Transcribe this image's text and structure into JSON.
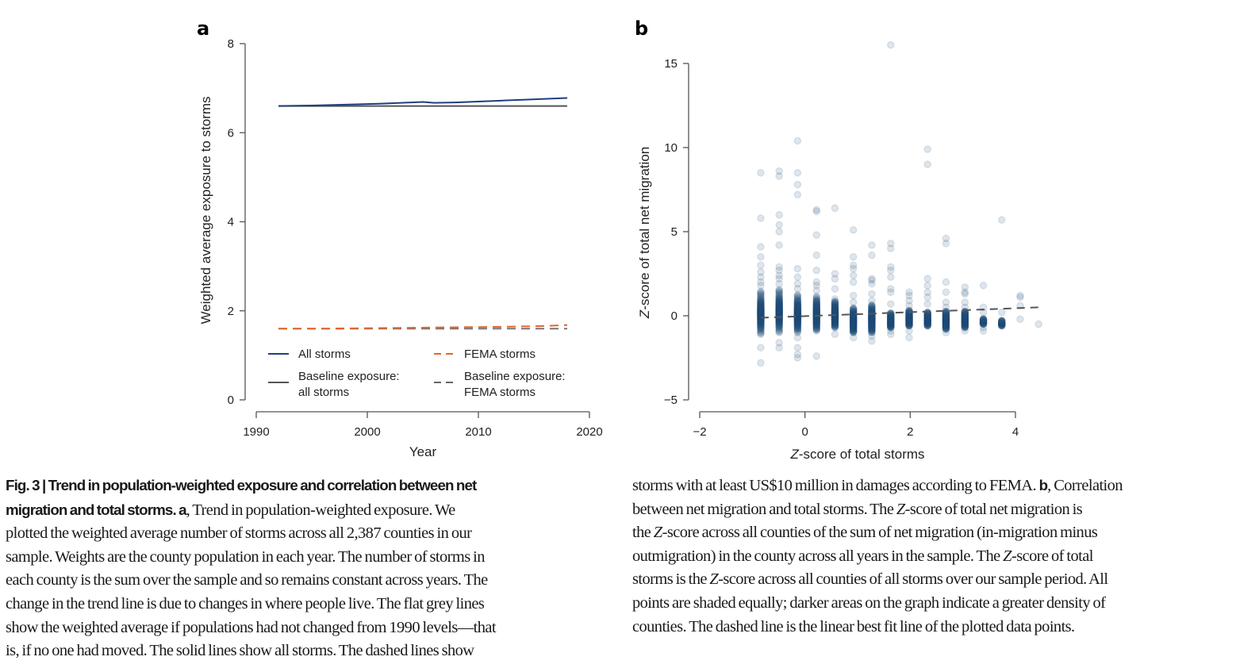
{
  "chart_data": [
    {
      "panel": "a",
      "type": "line",
      "xlabel": "Year",
      "ylabel": "Weighted average exposure to storms",
      "xlim": [
        1990,
        2020
      ],
      "ylim": [
        0,
        8
      ],
      "xticks": [
        1990,
        2000,
        2010,
        2020
      ],
      "yticks": [
        0,
        2,
        4,
        6,
        8
      ],
      "grid": false,
      "legend_position": "bottom",
      "series": [
        {
          "name": "All storms",
          "color": "#1f3f7f",
          "style": "solid",
          "x": [
            1992,
            1995,
            1998,
            2001,
            2004,
            2005,
            2006,
            2008,
            2010,
            2012,
            2014,
            2016,
            2018
          ],
          "y": [
            6.6,
            6.61,
            6.63,
            6.65,
            6.68,
            6.69,
            6.67,
            6.68,
            6.7,
            6.72,
            6.74,
            6.76,
            6.78
          ]
        },
        {
          "name": "Baseline exposure: all storms",
          "color": "#555555",
          "style": "solid",
          "x": [
            1992,
            2018
          ],
          "y": [
            6.6,
            6.6
          ]
        },
        {
          "name": "FEMA storms",
          "color": "#e8642b",
          "style": "dashed",
          "x": [
            1992,
            1996,
            2000,
            2004,
            2008,
            2012,
            2016,
            2018
          ],
          "y": [
            1.6,
            1.6,
            1.61,
            1.62,
            1.63,
            1.64,
            1.66,
            1.68
          ]
        },
        {
          "name": "Baseline exposure: FEMA storms",
          "color": "#777777",
          "style": "dashed",
          "x": [
            1992,
            2018
          ],
          "y": [
            1.6,
            1.6
          ]
        }
      ],
      "legend": [
        {
          "label_lines": [
            "All storms"
          ],
          "color": "#1f3f7f",
          "style": "solid"
        },
        {
          "label_lines": [
            "FEMA storms"
          ],
          "color": "#e8642b",
          "style": "dashed"
        },
        {
          "label_lines": [
            "Baseline exposure:",
            "all storms"
          ],
          "color": "#555555",
          "style": "solid"
        },
        {
          "label_lines": [
            "Baseline exposure:",
            "FEMA storms"
          ],
          "color": "#666666",
          "style": "dashed"
        }
      ]
    },
    {
      "panel": "b",
      "type": "scatter",
      "xlabel": "Z-score of total storms",
      "ylabel": "Z-score of total net migration",
      "xlim": [
        -2,
        4
      ],
      "ylim": [
        -5,
        15
      ],
      "xticks": [
        -2,
        0,
        2,
        4
      ],
      "yticks": [
        -5,
        0,
        5,
        10,
        15
      ],
      "grid": false,
      "point_color": "#1f4e79",
      "point_opacity": 0.15,
      "columns": [
        {
          "x": -0.84,
          "dense": [
            -1.1,
            1.5
          ],
          "sparse": [
            -2.8,
            -1.9,
            1.8,
            2.0,
            2.3,
            2.6,
            3.0,
            3.5,
            4.1,
            5.8,
            8.5
          ]
        },
        {
          "x": -0.49,
          "dense": [
            -1.0,
            1.6
          ],
          "sparse": [
            -1.9,
            -1.6,
            1.9,
            2.2,
            2.4,
            2.7,
            2.9,
            4.2,
            5.0,
            5.4,
            6.0,
            8.3,
            8.6
          ]
        },
        {
          "x": -0.14,
          "dense": [
            -1.0,
            1.3
          ],
          "sparse": [
            -2.5,
            -2.3,
            -1.9,
            -1.3,
            1.6,
            1.9,
            2.3,
            2.8,
            7.2,
            7.8,
            8.5,
            10.4
          ]
        },
        {
          "x": 0.22,
          "dense": [
            -0.9,
            1.2
          ],
          "sparse": [
            -2.4,
            1.5,
            1.8,
            2.0,
            2.7,
            3.6,
            4.8,
            6.2,
            6.3
          ]
        },
        {
          "x": 0.57,
          "dense": [
            -0.7,
            0.9
          ],
          "sparse": [
            -1.1,
            1.0,
            1.6,
            2.2,
            2.5,
            6.4
          ]
        },
        {
          "x": 0.92,
          "dense": [
            -1.0,
            0.5
          ],
          "sparse": [
            -1.3,
            0.8,
            1.2,
            2.0,
            2.4,
            2.8,
            3.0,
            3.5,
            5.1
          ]
        },
        {
          "x": 1.27,
          "dense": [
            -1.0,
            0.7
          ],
          "sparse": [
            -1.5,
            -1.2,
            0.9,
            1.3,
            1.9,
            2.1,
            2.2,
            3.6,
            4.2
          ]
        },
        {
          "x": 1.63,
          "dense": [
            -0.7,
            0.2
          ],
          "sparse": [
            -1.1,
            -0.9,
            0.7,
            1.4,
            1.6,
            2.3,
            2.7,
            2.9,
            4.0,
            4.3,
            16.1
          ]
        },
        {
          "x": 1.98,
          "dense": [
            -0.6,
            0.3
          ],
          "sparse": [
            -1.3,
            -0.9,
            0.6,
            0.9,
            1.2,
            1.4
          ]
        },
        {
          "x": 2.33,
          "dense": [
            -0.6,
            0.2
          ],
          "sparse": [
            0.7,
            1.1,
            1.4,
            1.8,
            2.2,
            9.0,
            9.9
          ]
        },
        {
          "x": 2.68,
          "dense": [
            -0.8,
            0.3
          ],
          "sparse": [
            -1.0,
            0.5,
            0.8,
            1.4,
            2.0,
            4.3,
            4.6
          ]
        },
        {
          "x": 3.04,
          "dense": [
            -0.7,
            0.3
          ],
          "sparse": [
            -0.9,
            0.5,
            0.8,
            1.3,
            1.4,
            1.7
          ]
        },
        {
          "x": 3.39,
          "dense": [
            -0.5,
            -0.2
          ],
          "sparse": [
            -0.9,
            -0.7,
            0.2,
            0.5,
            1.8
          ]
        },
        {
          "x": 3.74,
          "dense": [
            -0.6,
            -0.3
          ],
          "sparse": [
            -0.5,
            0.2,
            5.7
          ]
        },
        {
          "x": 4.09,
          "dense": [],
          "sparse": [
            -0.2,
            0.6,
            1.1,
            1.2
          ]
        },
        {
          "x": 4.44,
          "dense": [],
          "sparse": [
            -0.5
          ]
        }
      ],
      "fit_line": {
        "style": "dashed",
        "color": "#555555",
        "x": [
          -0.84,
          4.44
        ],
        "y": [
          -0.12,
          0.5
        ]
      }
    }
  ],
  "caption": {
    "col1_lines": [
      [
        {
          "b": "Fig. 3 | Trend in population-weighted exposure and correlation between net"
        }
      ],
      [
        {
          "b": "migration and total storms. a"
        },
        {
          "t": ", Trend in population-weighted exposure. We"
        }
      ],
      [
        {
          "t": "plotted the weighted average number of storms across all 2,387 counties in our"
        }
      ],
      [
        {
          "t": "sample. Weights are the county population in each year. The number of storms in"
        }
      ],
      [
        {
          "t": "each county is the sum over the sample and so remains constant across years. The"
        }
      ],
      [
        {
          "t": "change in the trend line is due to changes in where people live. The flat grey lines"
        }
      ],
      [
        {
          "t": "show the weighted average if populations had not changed from 1990 levels—that"
        }
      ],
      [
        {
          "t": "is, if no one had moved. The solid lines show all storms. The dashed lines show"
        }
      ]
    ],
    "col2_lines": [
      [
        {
          "t": "storms with at least US$10 million in damages according to FEMA. "
        },
        {
          "b": "b"
        },
        {
          "t": ", Correlation"
        }
      ],
      [
        {
          "t": "between net migration and total storms. The "
        },
        {
          "i": "Z"
        },
        {
          "t": "-score of total net migration is"
        }
      ],
      [
        {
          "t": "the "
        },
        {
          "i": "Z"
        },
        {
          "t": "-score across all counties of the sum of net migration (in-migration minus"
        }
      ],
      [
        {
          "t": "outmigration) in the county across all years in the sample. The "
        },
        {
          "i": "Z"
        },
        {
          "t": "-score of total"
        }
      ],
      [
        {
          "t": "storms is the "
        },
        {
          "i": "Z"
        },
        {
          "t": "-score across all counties of all storms over our sample period. All"
        }
      ],
      [
        {
          "t": "points are shaded equally; darker areas on the graph indicate a greater density of"
        }
      ],
      [
        {
          "t": "counties. The dashed line is the linear best fit line of the plotted data points."
        }
      ]
    ]
  }
}
